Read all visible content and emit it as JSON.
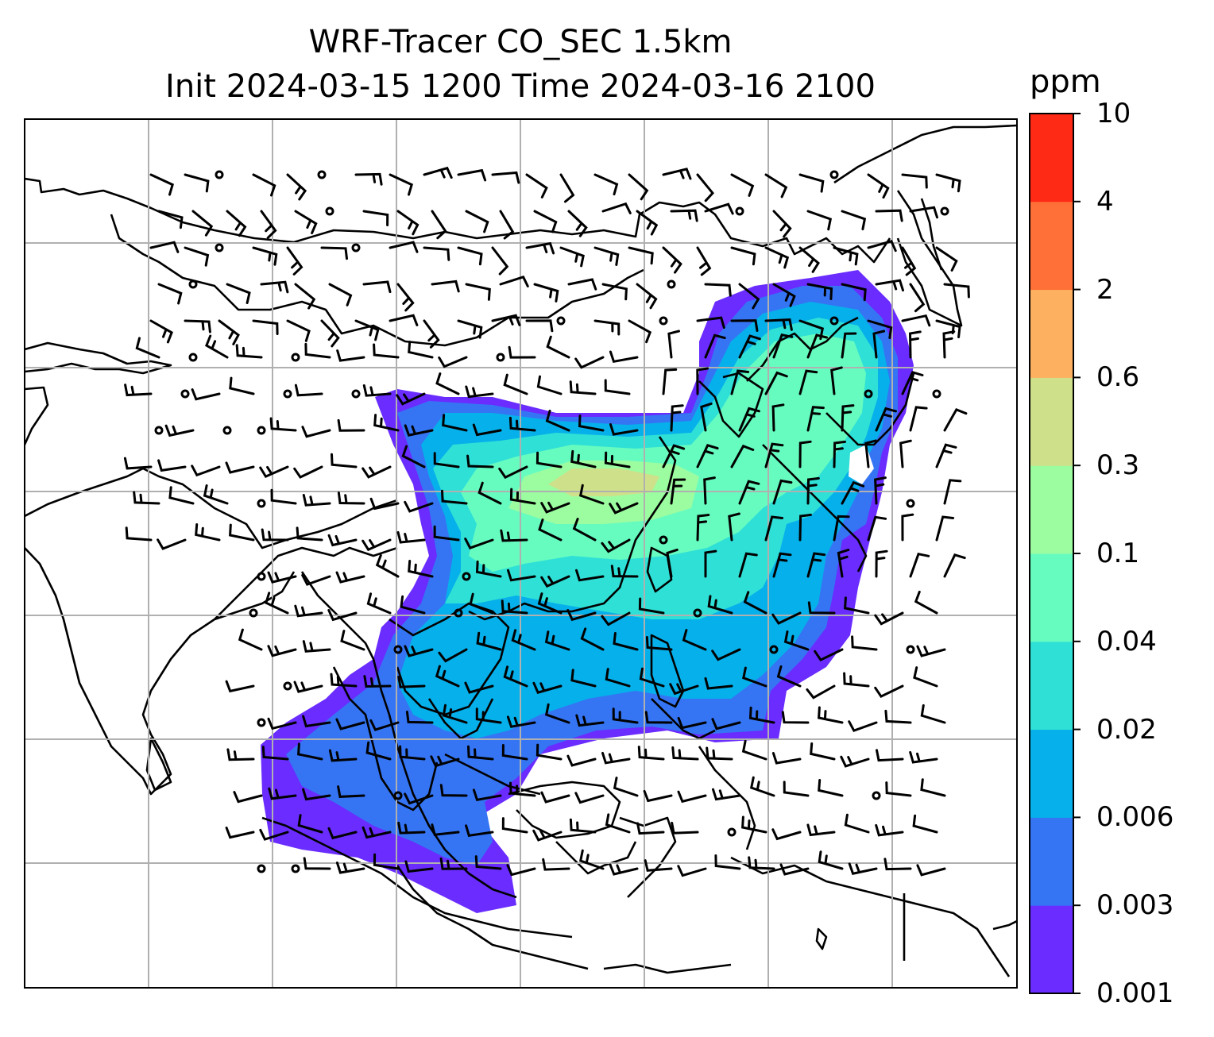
{
  "title": {
    "line1": "WRF-Tracer CO_SEC 1.5km",
    "line2": "Init 2024-03-15 1200 Time 2024-03-16 2100"
  },
  "colorbar": {
    "unit": "ppm",
    "levels": [
      "0.001",
      "0.003",
      "0.006",
      "0.02",
      "0.04",
      "0.1",
      "0.3",
      "0.6",
      "2",
      "4",
      "10"
    ],
    "colors": [
      "#6a2cff",
      "#3575f4",
      "#06b0ea",
      "#2fe0d6",
      "#66fcc0",
      "#9cfca0",
      "#cfe08a",
      "#fdb060",
      "#ff7038",
      "#ff2a16"
    ]
  },
  "map": {
    "type": "filled-contour-with-wind-barbs",
    "gridlines": true,
    "coastlines": true,
    "plume_colors": {
      "lowest": "#6a2cff",
      "low": "#3575f4",
      "mid": "#06b0ea",
      "midhigh": "#2fe0d6",
      "high": "#66fcc0",
      "higher": "#9cfca0",
      "peak": "#cfe08a"
    }
  }
}
